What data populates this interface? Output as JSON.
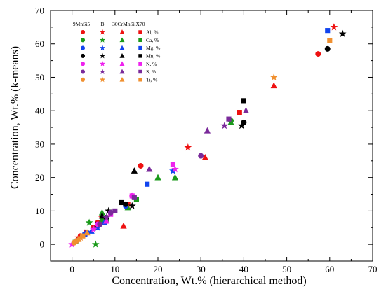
{
  "chart_data": {
    "type": "scatter",
    "title": "",
    "xlabel": "Concentration, Wt.% (hierarchical method)",
    "ylabel": "Concentration, Wt.% (k-means)",
    "xlim": [
      -5,
      70
    ],
    "ylim": [
      -5,
      70
    ],
    "x_ticks": [
      0,
      10,
      20,
      30,
      40,
      50,
      60,
      70
    ],
    "y_ticks": [
      0,
      10,
      20,
      30,
      40,
      50,
      60,
      70
    ],
    "grid": false,
    "legend_placement": "top-left",
    "legend_group_headers": [
      "9MnSi5",
      "B",
      "30CrMnSi",
      "X70"
    ],
    "marker_shapes": {
      "9MnSi5": "circle",
      "B": "star",
      "30CrMnSi": "triangle",
      "X70": "square"
    },
    "series": [
      {
        "name": "Al, %",
        "color": "#ee1111",
        "points": [
          {
            "group": "9MnSi5",
            "x": 57.3,
            "y": 57.0
          },
          {
            "group": "9MnSi5",
            "x": 16.0,
            "y": 23.5
          },
          {
            "group": "9MnSi5",
            "x": 6.0,
            "y": 6.5
          },
          {
            "group": "9MnSi5",
            "x": 2.0,
            "y": 2.5
          },
          {
            "group": "B",
            "x": 61.0,
            "y": 65.0
          },
          {
            "group": "B",
            "x": 27.0,
            "y": 29.0
          },
          {
            "group": "B",
            "x": 7.0,
            "y": 8.0
          },
          {
            "group": "B",
            "x": 1.5,
            "y": 2.0
          },
          {
            "group": "30CrMnSi",
            "x": 47.0,
            "y": 47.5
          },
          {
            "group": "30CrMnSi",
            "x": 31.0,
            "y": 26.0
          },
          {
            "group": "30CrMnSi",
            "x": 12.0,
            "y": 5.5
          },
          {
            "group": "30CrMnSi",
            "x": 3.0,
            "y": 3.5
          },
          {
            "group": "X70",
            "x": 39.0,
            "y": 39.5
          },
          {
            "group": "X70",
            "x": 13.0,
            "y": 12.0
          },
          {
            "group": "X70",
            "x": 5.0,
            "y": 5.0
          }
        ]
      },
      {
        "name": "Ca, %",
        "color": "#1a9a1a",
        "points": [
          {
            "group": "9MnSi5",
            "x": 37.0,
            "y": 37.0
          },
          {
            "group": "9MnSi5",
            "x": 7.0,
            "y": 7.0
          },
          {
            "group": "9MnSi5",
            "x": 3.0,
            "y": 3.0
          },
          {
            "group": "B",
            "x": 5.5,
            "y": 0.0
          },
          {
            "group": "B",
            "x": 4.0,
            "y": 6.5
          },
          {
            "group": "B",
            "x": 1.0,
            "y": 1.0
          },
          {
            "group": "30CrMnSi",
            "x": 37.0,
            "y": 36.5
          },
          {
            "group": "30CrMnSi",
            "x": 24.0,
            "y": 20.0
          },
          {
            "group": "30CrMnSi",
            "x": 20.0,
            "y": 20.0
          },
          {
            "group": "30CrMnSi",
            "x": 13.0,
            "y": 11.0
          },
          {
            "group": "30CrMnSi",
            "x": 7.0,
            "y": 9.5
          },
          {
            "group": "X70",
            "x": 15.0,
            "y": 13.5
          },
          {
            "group": "X70",
            "x": 8.0,
            "y": 7.5
          }
        ]
      },
      {
        "name": "Mg, %",
        "color": "#1144ee",
        "points": [
          {
            "group": "9MnSi5",
            "x": 12.5,
            "y": 11.5
          },
          {
            "group": "9MnSi5",
            "x": 3.5,
            "y": 3.5
          },
          {
            "group": "9MnSi5",
            "x": 1.0,
            "y": 1.0
          },
          {
            "group": "B",
            "x": 23.5,
            "y": 22.0
          },
          {
            "group": "B",
            "x": 6.0,
            "y": 5.0
          },
          {
            "group": "30CrMnSi",
            "x": 4.5,
            "y": 4.0
          },
          {
            "group": "30CrMnSi",
            "x": 7.5,
            "y": 6.5
          },
          {
            "group": "X70",
            "x": 59.5,
            "y": 64.0
          },
          {
            "group": "X70",
            "x": 17.5,
            "y": 18.0
          },
          {
            "group": "X70",
            "x": 3.0,
            "y": 3.0
          }
        ]
      },
      {
        "name": "Mn, %",
        "color": "#000000",
        "points": [
          {
            "group": "9MnSi5",
            "x": 59.5,
            "y": 58.5
          },
          {
            "group": "9MnSi5",
            "x": 40.0,
            "y": 36.5
          },
          {
            "group": "9MnSi5",
            "x": 12.5,
            "y": 12.0
          },
          {
            "group": "9MnSi5",
            "x": 8.0,
            "y": 8.0
          },
          {
            "group": "B",
            "x": 63.0,
            "y": 63.0
          },
          {
            "group": "B",
            "x": 39.5,
            "y": 35.5
          },
          {
            "group": "B",
            "x": 14.0,
            "y": 11.5
          },
          {
            "group": "B",
            "x": 8.5,
            "y": 10.0
          },
          {
            "group": "30CrMnSi",
            "x": 14.5,
            "y": 22.0
          },
          {
            "group": "30CrMnSi",
            "x": 7.0,
            "y": 8.5
          },
          {
            "group": "X70",
            "x": 40.0,
            "y": 43.0
          },
          {
            "group": "X70",
            "x": 11.5,
            "y": 12.5
          },
          {
            "group": "X70",
            "x": 6.0,
            "y": 6.0
          }
        ]
      },
      {
        "name": "N, %",
        "color": "#ee22ee",
        "points": [
          {
            "group": "9MnSi5",
            "x": 14.0,
            "y": 14.5
          },
          {
            "group": "9MnSi5",
            "x": 6.0,
            "y": 6.0
          },
          {
            "group": "B",
            "x": 0.0,
            "y": 0.0
          },
          {
            "group": "B",
            "x": 24.0,
            "y": 22.5
          },
          {
            "group": "B",
            "x": 5.0,
            "y": 4.5
          },
          {
            "group": "30CrMnSi",
            "x": 8.0,
            "y": 7.0
          },
          {
            "group": "X70",
            "x": 23.5,
            "y": 24.0
          },
          {
            "group": "X70",
            "x": 14.0,
            "y": 14.5
          },
          {
            "group": "X70",
            "x": 9.0,
            "y": 9.0
          }
        ]
      },
      {
        "name": "S, %",
        "color": "#7a2a9a",
        "points": [
          {
            "group": "9MnSi5",
            "x": 30.0,
            "y": 26.5
          },
          {
            "group": "9MnSi5",
            "x": 9.0,
            "y": 9.5
          },
          {
            "group": "9MnSi5",
            "x": 6.5,
            "y": 6.0
          },
          {
            "group": "B",
            "x": 35.5,
            "y": 35.5
          },
          {
            "group": "B",
            "x": 8.0,
            "y": 8.0
          },
          {
            "group": "30CrMnSi",
            "x": 31.5,
            "y": 34.0
          },
          {
            "group": "30CrMnSi",
            "x": 18.0,
            "y": 22.5
          },
          {
            "group": "30CrMnSi",
            "x": 40.5,
            "y": 40.0
          },
          {
            "group": "X70",
            "x": 36.5,
            "y": 37.5
          },
          {
            "group": "X70",
            "x": 14.5,
            "y": 14.0
          },
          {
            "group": "X70",
            "x": 10.0,
            "y": 10.0
          }
        ]
      },
      {
        "name": "Ti, %",
        "color": "#f09030",
        "points": [
          {
            "group": "9MnSi5",
            "x": 1.0,
            "y": 1.0
          },
          {
            "group": "9MnSi5",
            "x": 0.5,
            "y": 0.5
          },
          {
            "group": "B",
            "x": 47.0,
            "y": 50.0
          },
          {
            "group": "B",
            "x": 2.0,
            "y": 2.0
          },
          {
            "group": "30CrMnSi",
            "x": 3.5,
            "y": 3.5
          },
          {
            "group": "30CrMnSi",
            "x": 1.5,
            "y": 1.5
          },
          {
            "group": "X70",
            "x": 60.0,
            "y": 61.0
          },
          {
            "group": "X70",
            "x": 2.5,
            "y": 2.5
          }
        ]
      }
    ]
  }
}
